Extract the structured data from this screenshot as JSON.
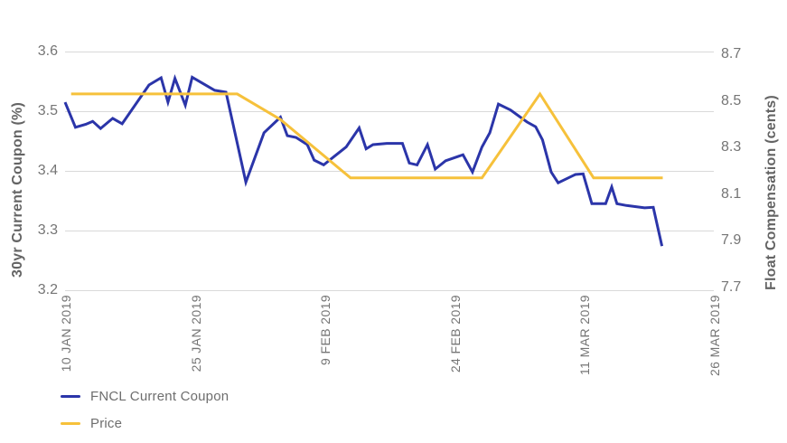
{
  "chart_data": {
    "type": "line",
    "title": "",
    "x_axis": {
      "tick_labels": [
        "10 JAN 2019",
        "25 JAN 2019",
        "9 FEB 2019",
        "24 FEB 2019",
        "11 MAR 2019",
        "26 MAR 2019"
      ],
      "tick_days": [
        0,
        15,
        30,
        45,
        60,
        75
      ],
      "range_days": [
        0,
        75
      ]
    },
    "y_axis_left": {
      "label": "30yr Current Coupon (%)",
      "ticks": [
        3.6,
        3.5,
        3.4,
        3.3,
        3.2
      ],
      "range": [
        3.2,
        3.6
      ]
    },
    "y_axis_right": {
      "label": "Float Compensation (cents)",
      "ticks": [
        8.7,
        8.5,
        8.3,
        8.1,
        7.9,
        7.7
      ],
      "range": [
        7.7,
        8.7
      ]
    },
    "grid": "horizontal",
    "legend_position": "bottom-left",
    "series": [
      {
        "name": "FNCL Current Coupon",
        "axis": "left",
        "color": "#2B35A9",
        "points": [
          [
            0,
            3.515
          ],
          [
            1.2,
            3.473
          ],
          [
            2.4,
            3.478
          ],
          [
            3.2,
            3.483
          ],
          [
            4.1,
            3.471
          ],
          [
            5.5,
            3.488
          ],
          [
            6.6,
            3.479
          ],
          [
            9.7,
            3.544
          ],
          [
            11.1,
            3.556
          ],
          [
            11.9,
            3.515
          ],
          [
            12.7,
            3.555
          ],
          [
            13.9,
            3.51
          ],
          [
            14.7,
            3.557
          ],
          [
            17.3,
            3.535
          ],
          [
            18.6,
            3.532
          ],
          [
            20.9,
            3.381
          ],
          [
            23,
            3.464
          ],
          [
            24.9,
            3.49
          ],
          [
            25.7,
            3.459
          ],
          [
            26.7,
            3.456
          ],
          [
            28,
            3.444
          ],
          [
            28.8,
            3.418
          ],
          [
            29.9,
            3.41
          ],
          [
            31.1,
            3.424
          ],
          [
            32.5,
            3.44
          ],
          [
            34,
            3.472
          ],
          [
            34.8,
            3.437
          ],
          [
            35.6,
            3.444
          ],
          [
            37.2,
            3.446
          ],
          [
            39,
            3.446
          ],
          [
            39.8,
            3.413
          ],
          [
            40.7,
            3.41
          ],
          [
            41.9,
            3.444
          ],
          [
            42.8,
            3.403
          ],
          [
            44,
            3.417
          ],
          [
            45.4,
            3.424
          ],
          [
            46,
            3.427
          ],
          [
            47.1,
            3.398
          ],
          [
            48.2,
            3.44
          ],
          [
            49.1,
            3.464
          ],
          [
            50.1,
            3.512
          ],
          [
            51.5,
            3.502
          ],
          [
            53.4,
            3.482
          ],
          [
            54.4,
            3.474
          ],
          [
            55.2,
            3.452
          ],
          [
            56.2,
            3.398
          ],
          [
            57,
            3.38
          ],
          [
            59,
            3.394
          ],
          [
            59.9,
            3.395
          ],
          [
            60.9,
            3.345
          ],
          [
            62.5,
            3.345
          ],
          [
            63.2,
            3.373
          ],
          [
            63.8,
            3.345
          ],
          [
            64.9,
            3.342
          ],
          [
            67,
            3.338
          ],
          [
            68,
            3.339
          ],
          [
            69,
            3.274
          ]
        ]
      },
      {
        "name": "Price",
        "axis": "right",
        "color": "#F6C13B",
        "points": [
          [
            0.7,
            8.53
          ],
          [
            19.9,
            8.53
          ],
          [
            24.9,
            8.42
          ],
          [
            33,
            8.17
          ],
          [
            48.2,
            8.17
          ],
          [
            54.9,
            8.53
          ],
          [
            61.1,
            8.17
          ],
          [
            69.1,
            8.17
          ]
        ]
      }
    ]
  },
  "legend": {
    "items": [
      {
        "label": "FNCL Current Coupon"
      },
      {
        "label": "Price"
      }
    ]
  },
  "colors": {
    "series_blue": "#2B35A9",
    "series_yellow": "#F6C13B",
    "grid": "#D9D9D9",
    "tick_text": "#757575",
    "axis_title_text": "#646464",
    "legend_text": "#6E6E6E",
    "background": "#FFFFFF"
  }
}
